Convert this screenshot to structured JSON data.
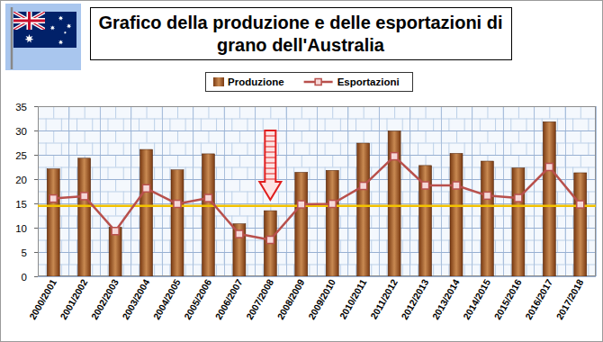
{
  "chart_data": {
    "type": "bar",
    "title": "Grafico della produzione e delle esportazioni di grano dell'Australia",
    "categories": [
      "2000/2001",
      "2001/2002",
      "2002/2003",
      "2003/2004",
      "2004/2005",
      "2005/2006",
      "2006/2007",
      "2007/2008",
      "2008/2009",
      "2009/2010",
      "2010/2011",
      "2011/2012",
      "2012/2013",
      "2013/2014",
      "2014/2015",
      "2015/2016",
      "2016/2017",
      "2017/2018"
    ],
    "series": [
      {
        "name": "Produzione",
        "type": "bar",
        "color": "#7a3a12",
        "values": [
          22.1,
          24.3,
          10.1,
          26.1,
          21.9,
          25.2,
          10.8,
          13.5,
          21.4,
          21.8,
          27.4,
          29.9,
          22.8,
          25.3,
          23.7,
          22.3,
          31.8,
          21.3
        ]
      },
      {
        "name": "Esportazioni",
        "type": "line",
        "color": "#b8504c",
        "marker": "square",
        "values": [
          16.0,
          16.5,
          9.3,
          18.1,
          14.9,
          16.1,
          8.7,
          7.5,
          14.8,
          14.9,
          18.6,
          24.7,
          18.7,
          18.7,
          16.6,
          16.1,
          22.5,
          14.8
        ]
      }
    ],
    "ylim": [
      0,
      35
    ],
    "yticks": [
      0,
      5,
      10,
      15,
      20,
      25,
      30,
      35
    ],
    "grid": true,
    "legend": "top",
    "reference_line": 14.5
  }
}
